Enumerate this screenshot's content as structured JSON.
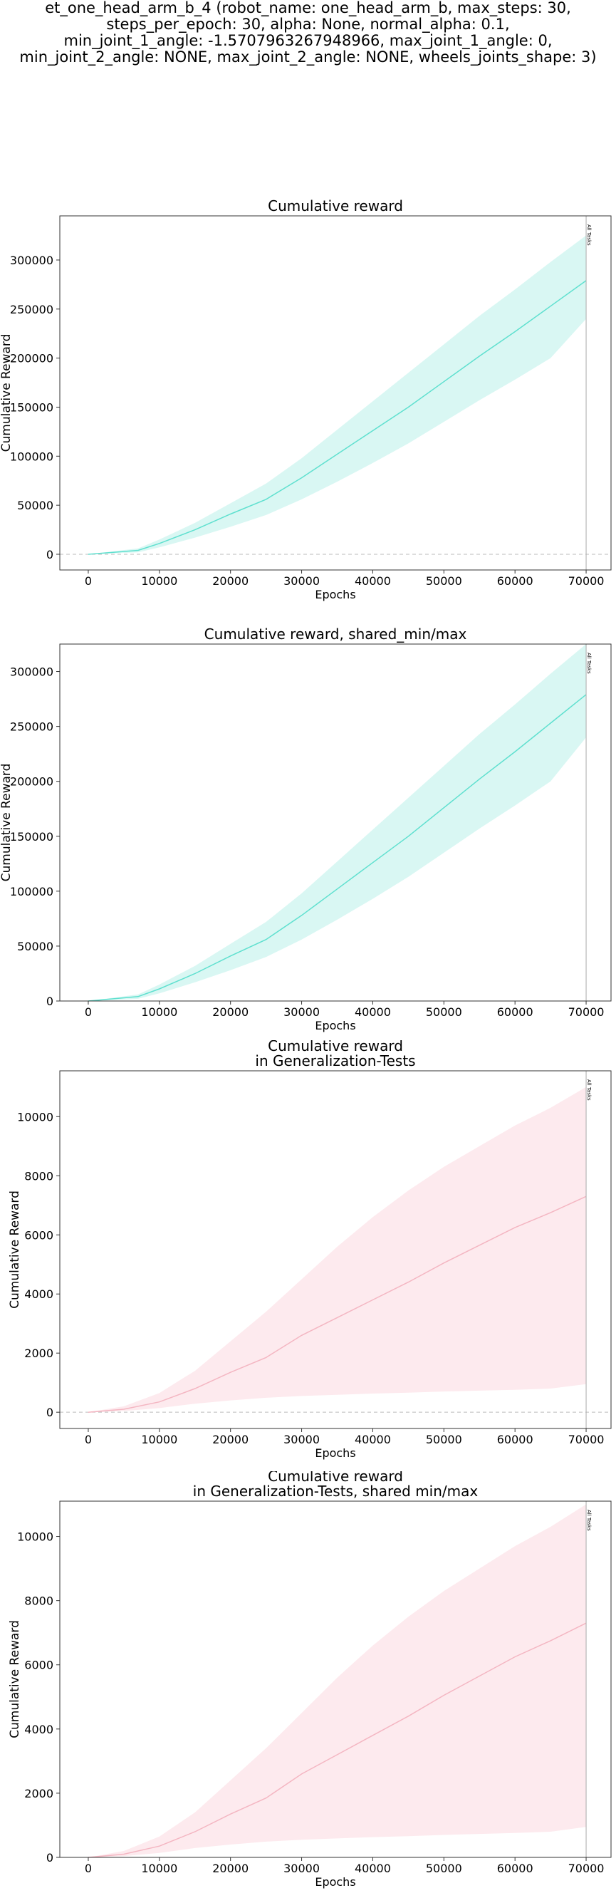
{
  "figure": {
    "title": "et_one_head_arm_b_4 (robot_name: one_head_arm_b, max_steps: 30,\nsteps_per_epoch: 30, alpha: None, normal_alpha: 0.1,\nmin_joint_1_angle: -1.5707963267948966, max_joint_1_angle: 0,\nmin_joint_2_angle: NONE, max_joint_2_angle: NONE, wheels_joints_shape: 3)"
  },
  "colors": {
    "reward_line": "#5fe0cf",
    "reward_band": "#d9f7f3",
    "generalization_line": "#f4b6c2",
    "generalization_band": "#fdeaee",
    "vline": "#aaaaaa",
    "zero_line": "#bbbbbb"
  },
  "chart_data": [
    {
      "type": "line",
      "title": "Cumulative reward",
      "xlabel": "Epochs",
      "ylabel": "Cumulative Reward",
      "xlim": [
        -4000,
        73500
      ],
      "ylim": [
        -16000,
        345000
      ],
      "xticks": [
        0,
        10000,
        20000,
        30000,
        40000,
        50000,
        60000,
        70000
      ],
      "yticks": [
        0,
        50000,
        100000,
        150000,
        200000,
        250000,
        300000
      ],
      "zero_line": true,
      "vline": {
        "x": 70000,
        "label": "All Tasks"
      },
      "series": [
        {
          "color_key": "reward",
          "x": [
            0,
            7000,
            10000,
            15000,
            20000,
            25000,
            30000,
            35000,
            40000,
            45000,
            50000,
            55000,
            60000,
            65000,
            70000
          ],
          "values": [
            0,
            4000,
            11000,
            25000,
            41000,
            56000,
            78000,
            102000,
            126000,
            150000,
            176000,
            202000,
            227000,
            253000,
            279000
          ],
          "lower": [
            0,
            2000,
            7000,
            17000,
            28000,
            40000,
            56000,
            74000,
            93000,
            113000,
            135000,
            157000,
            178000,
            200000,
            240000
          ],
          "upper": [
            0,
            6000,
            15000,
            32000,
            52000,
            72000,
            98000,
            127000,
            156000,
            185000,
            214000,
            243000,
            270000,
            298000,
            325000
          ]
        }
      ]
    },
    {
      "type": "line",
      "title": "Cumulative reward, shared_min/max",
      "xlabel": "Epochs",
      "ylabel": "Cumulative Reward",
      "xlim": [
        -4000,
        73500
      ],
      "ylim": [
        0,
        325000
      ],
      "xticks": [
        0,
        10000,
        20000,
        30000,
        40000,
        50000,
        60000,
        70000
      ],
      "yticks": [
        0,
        50000,
        100000,
        150000,
        200000,
        250000,
        300000
      ],
      "zero_line": false,
      "vline": {
        "x": 70000,
        "label": "All Tasks"
      },
      "series": [
        {
          "color_key": "reward",
          "x": [
            0,
            7000,
            10000,
            15000,
            20000,
            25000,
            30000,
            35000,
            40000,
            45000,
            50000,
            55000,
            60000,
            65000,
            70000
          ],
          "values": [
            0,
            4000,
            11000,
            25000,
            41000,
            56000,
            78000,
            102000,
            126000,
            150000,
            176000,
            202000,
            227000,
            253000,
            279000
          ],
          "lower": [
            0,
            2000,
            7000,
            17000,
            28000,
            40000,
            56000,
            74000,
            93000,
            113000,
            135000,
            157000,
            178000,
            200000,
            240000
          ],
          "upper": [
            0,
            6000,
            15000,
            32000,
            52000,
            72000,
            98000,
            127000,
            156000,
            185000,
            214000,
            243000,
            270000,
            298000,
            325000
          ]
        }
      ]
    },
    {
      "type": "line",
      "title": "Cumulative reward\nin Generalization-Tests",
      "xlabel": "Epochs",
      "ylabel": "Cumulative Reward",
      "xlim": [
        -4000,
        73500
      ],
      "ylim": [
        -550,
        11550
      ],
      "xticks": [
        0,
        10000,
        20000,
        30000,
        40000,
        50000,
        60000,
        70000
      ],
      "yticks": [
        0,
        2000,
        4000,
        6000,
        8000,
        10000
      ],
      "zero_line": true,
      "vline": {
        "x": 70000,
        "label": "All Tasks"
      },
      "series": [
        {
          "color_key": "generalization",
          "x": [
            0,
            5000,
            10000,
            15000,
            20000,
            25000,
            30000,
            35000,
            40000,
            45000,
            50000,
            55000,
            60000,
            65000,
            70000
          ],
          "values": [
            0,
            100,
            350,
            800,
            1350,
            1850,
            2600,
            3200,
            3800,
            4400,
            5050,
            5650,
            6250,
            6750,
            7300
          ],
          "lower": [
            0,
            40,
            140,
            290,
            400,
            490,
            550,
            590,
            630,
            660,
            700,
            730,
            760,
            800,
            950
          ],
          "upper": [
            0,
            200,
            650,
            1400,
            2400,
            3400,
            4500,
            5600,
            6600,
            7500,
            8300,
            9000,
            9700,
            10300,
            11000
          ]
        }
      ]
    },
    {
      "type": "line",
      "title": "Cumulative reward\nin Generalization-Tests, shared min/max",
      "xlabel": "Epochs",
      "ylabel": "Cumulative Reward",
      "xlim": [
        -4000,
        73500
      ],
      "ylim": [
        0,
        11100
      ],
      "xticks": [
        0,
        10000,
        20000,
        30000,
        40000,
        50000,
        60000,
        70000
      ],
      "yticks": [
        0,
        2000,
        4000,
        6000,
        8000,
        10000
      ],
      "zero_line": false,
      "vline": {
        "x": 70000,
        "label": "All Tasks"
      },
      "series": [
        {
          "color_key": "generalization",
          "x": [
            0,
            5000,
            10000,
            15000,
            20000,
            25000,
            30000,
            35000,
            40000,
            45000,
            50000,
            55000,
            60000,
            65000,
            70000
          ],
          "values": [
            0,
            100,
            350,
            800,
            1350,
            1850,
            2600,
            3200,
            3800,
            4400,
            5050,
            5650,
            6250,
            6750,
            7300
          ],
          "lower": [
            0,
            40,
            140,
            290,
            400,
            490,
            550,
            590,
            630,
            660,
            700,
            730,
            760,
            800,
            950
          ],
          "upper": [
            0,
            200,
            650,
            1400,
            2400,
            3400,
            4500,
            5600,
            6600,
            7500,
            8300,
            9000,
            9700,
            10300,
            11000
          ]
        }
      ]
    }
  ]
}
